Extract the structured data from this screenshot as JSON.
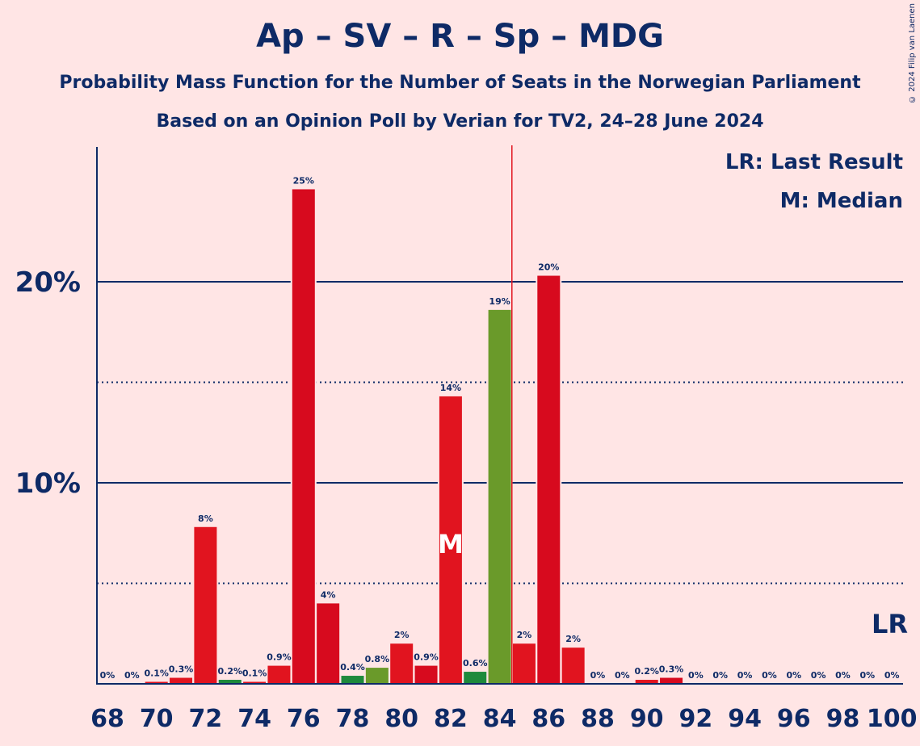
{
  "title": "Ap – SV – R – Sp – MDG",
  "subtitle": "Probability Mass Function for the Number of Seats in the Norwegian Parliament",
  "subtitle2": "Based on an Opinion Poll by Verian for TV2, 24–28 June 2024",
  "copyright": "© 2024 Filip van Laenen",
  "legend": {
    "lr": "LR: Last Result",
    "m": "M: Median"
  },
  "lr_marker": "LR",
  "median_marker": "M",
  "colors": {
    "background": "#FFE5E5",
    "text": "#0E2A66",
    "red": "#E1141F",
    "red_dark": "#D70A1E",
    "green": "#1E8A3C",
    "olive": "#6A9A2A",
    "majority_line": "#E1141F"
  },
  "chart_data": {
    "type": "bar",
    "x": [
      68,
      69,
      70,
      71,
      72,
      73,
      74,
      75,
      76,
      77,
      78,
      79,
      80,
      81,
      82,
      83,
      84,
      85,
      86,
      87,
      88,
      89,
      90,
      91,
      92,
      93,
      94,
      95,
      96,
      97,
      98,
      99,
      100
    ],
    "values": [
      0,
      0,
      0.1,
      0.3,
      7.8,
      0.2,
      0.1,
      0.9,
      24.6,
      4.0,
      0.4,
      0.8,
      2.0,
      0.9,
      14.3,
      0.6,
      18.6,
      2.0,
      20.3,
      1.8,
      0,
      0,
      0.2,
      0.3,
      0,
      0,
      0,
      0,
      0,
      0,
      0,
      0,
      0
    ],
    "labels": [
      "0%",
      "0%",
      "0.1%",
      "0.3%",
      "8%",
      "0.2%",
      "0.1%",
      "0.9%",
      "25%",
      "4%",
      "0.4%",
      "0.8%",
      "2%",
      "0.9%",
      "14%",
      "0.6%",
      "19%",
      "2%",
      "20%",
      "2%",
      "0%",
      "0%",
      "0.2%",
      "0.3%",
      "0%",
      "0%",
      "0%",
      "0%",
      "0%",
      "0%",
      "0%",
      "0%",
      "0%"
    ],
    "bar_colors": [
      "red",
      "red",
      "red",
      "red",
      "red",
      "green",
      "red",
      "red",
      "red_dark",
      "red_dark",
      "green",
      "olive",
      "red",
      "red_dark",
      "red",
      "green",
      "olive",
      "red",
      "red_dark",
      "red",
      "red",
      "red",
      "red",
      "red_dark",
      "red",
      "red",
      "red",
      "red",
      "red",
      "red",
      "red",
      "red",
      "red"
    ],
    "xticks": [
      "68",
      "70",
      "72",
      "74",
      "76",
      "78",
      "80",
      "82",
      "84",
      "86",
      "88",
      "90",
      "92",
      "94",
      "96",
      "98",
      "100"
    ],
    "yticks": [
      "10%",
      "20%"
    ],
    "ylim": [
      0,
      27
    ],
    "solid_gridlines": [
      10,
      20
    ],
    "dotted_gridlines": [
      5,
      15
    ],
    "majority_after": 84,
    "median": 82,
    "last_result": 100
  }
}
